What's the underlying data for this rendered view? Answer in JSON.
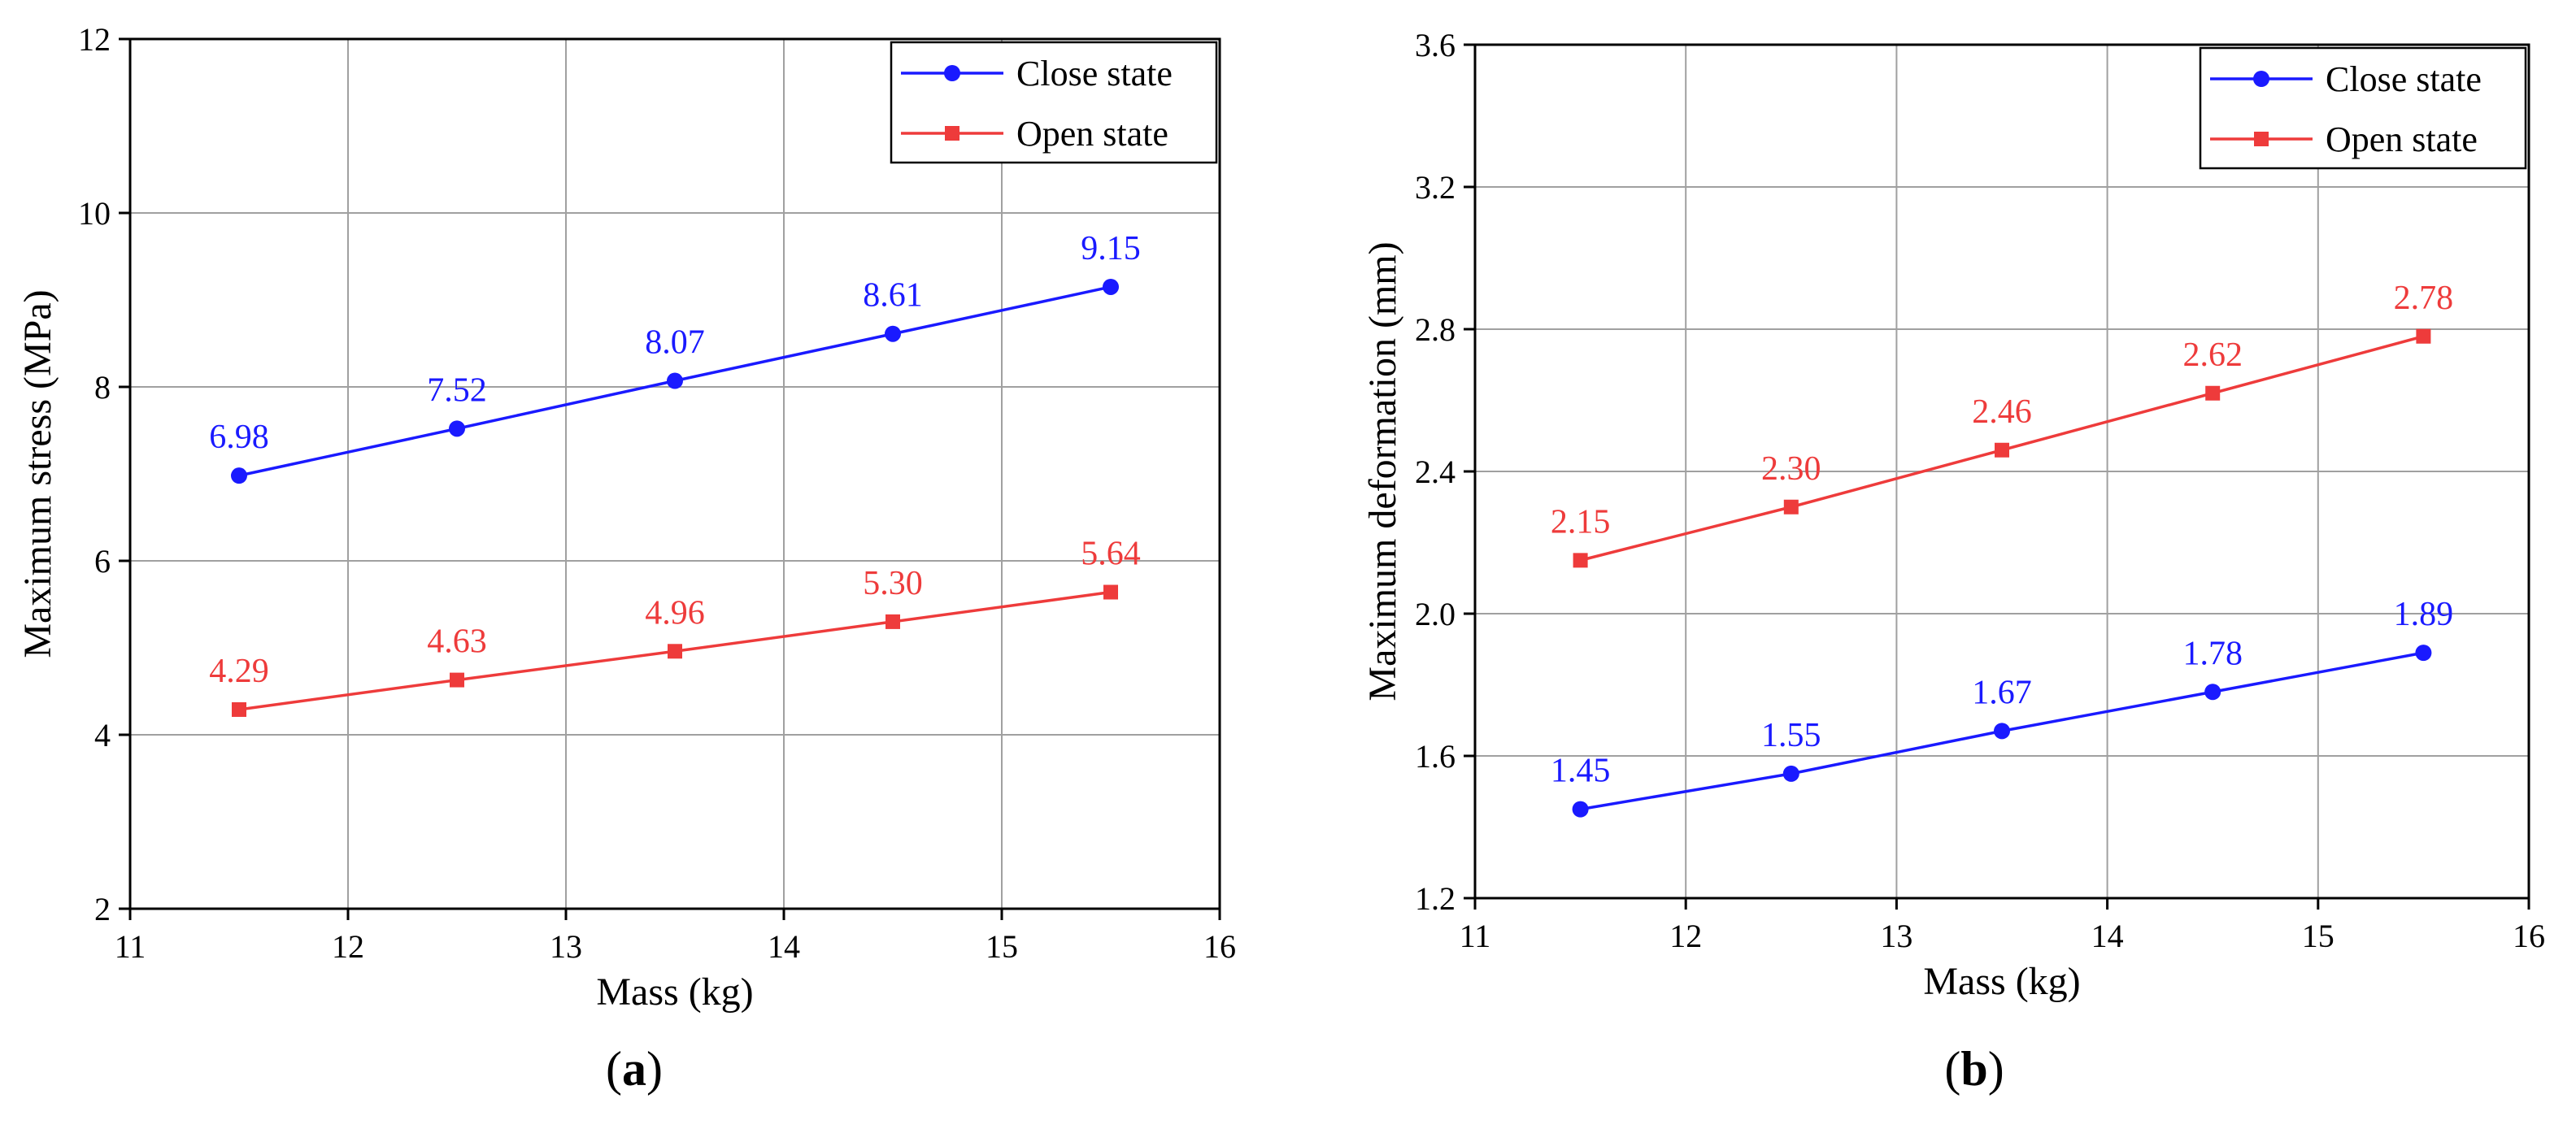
{
  "colors": {
    "close": "#1a1aff",
    "open": "#ee3b3b",
    "axis": "#000000",
    "grid": "#a0a0a0"
  },
  "chart_data": [
    {
      "type": "line",
      "panel_label": "(a)",
      "title": "",
      "xlabel": "Mass (kg)",
      "ylabel": "Maximum stress (MPa)",
      "xlim": [
        11,
        16
      ],
      "ylim": [
        2,
        12
      ],
      "xticks": [
        11,
        12,
        13,
        14,
        15,
        16
      ],
      "yticks": [
        2,
        4,
        6,
        8,
        10,
        12
      ],
      "ytick_labels": [
        "2",
        "4",
        "6",
        "8",
        "10",
        "12"
      ],
      "grid": true,
      "legend_position": "top-right",
      "x": [
        11.5,
        12.5,
        13.5,
        14.5,
        15.5
      ],
      "series": [
        {
          "name": "Close state",
          "marker": "circle",
          "color_key": "close",
          "values": [
            6.98,
            7.52,
            8.07,
            8.61,
            9.15
          ],
          "labels": [
            "6.98",
            "7.52",
            "8.07",
            "8.61",
            "9.15"
          ]
        },
        {
          "name": "Open state",
          "marker": "square",
          "color_key": "open",
          "values": [
            4.29,
            4.63,
            4.96,
            5.3,
            5.64
          ],
          "labels": [
            "4.29",
            "4.63",
            "4.96",
            "5.30",
            "5.64"
          ]
        }
      ]
    },
    {
      "type": "line",
      "panel_label": "(b)",
      "title": "",
      "xlabel": "Mass (kg)",
      "ylabel": "Maximum deformation (mm)",
      "xlim": [
        11,
        16
      ],
      "ylim": [
        1.2,
        3.6
      ],
      "xticks": [
        11,
        12,
        13,
        14,
        15,
        16
      ],
      "yticks": [
        1.2,
        1.6,
        2.0,
        2.4,
        2.8,
        3.2,
        3.6
      ],
      "ytick_labels": [
        "1.2",
        "1.6",
        "2.0",
        "2.4",
        "2.8",
        "3.2",
        "3.6"
      ],
      "grid": true,
      "legend_position": "top-right",
      "x": [
        11.5,
        12.5,
        13.5,
        14.5,
        15.5
      ],
      "series": [
        {
          "name": "Close state",
          "marker": "circle",
          "color_key": "close",
          "values": [
            1.45,
            1.55,
            1.67,
            1.78,
            1.89
          ],
          "labels": [
            "1.45",
            "1.55",
            "1.67",
            "1.78",
            "1.89"
          ]
        },
        {
          "name": "Open state",
          "marker": "square",
          "color_key": "open",
          "values": [
            2.15,
            2.3,
            2.46,
            2.62,
            2.78
          ],
          "labels": [
            "2.15",
            "2.30",
            "2.46",
            "2.62",
            "2.78"
          ]
        }
      ]
    }
  ]
}
